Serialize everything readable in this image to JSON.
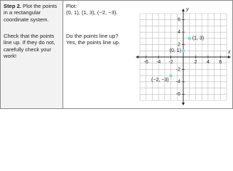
{
  "step": {
    "label": "Step 2.",
    "text": "Plot the points in a rectangular coordinate system.",
    "check": "Check that the points line up. If they do not, carefully check your work!"
  },
  "plot": {
    "heading": "Plot:",
    "points": "(0, 1), (1, 3), (−2, −3).",
    "question": "Do the points line up?",
    "answer": "Yes, the points line up."
  },
  "chart_data": {
    "type": "scatter",
    "x_label": "x",
    "y_label": "y",
    "xlim": [
      -7,
      7
    ],
    "ylim": [
      -7,
      7
    ],
    "xticks": [
      -6,
      -4,
      -2,
      2,
      4,
      6
    ],
    "yticks": [
      -6,
      -4,
      -2,
      2,
      4,
      6
    ],
    "grid_x": [
      -7,
      -6,
      -5,
      -4,
      -3,
      -2,
      -1,
      0,
      1,
      2,
      3,
      4,
      5,
      6,
      7
    ],
    "grid_y": [
      -7,
      -6,
      -5,
      -4,
      -3,
      -2,
      -1,
      0,
      1,
      2,
      3,
      4,
      5,
      6,
      7
    ],
    "series": [
      {
        "color": "#86dccb",
        "x": [
          0,
          1,
          -2
        ],
        "values": [
          1,
          3,
          -3
        ],
        "point_labels": [
          "(0, 1)",
          "(1, 3)",
          "(−2, −3)"
        ]
      }
    ]
  }
}
